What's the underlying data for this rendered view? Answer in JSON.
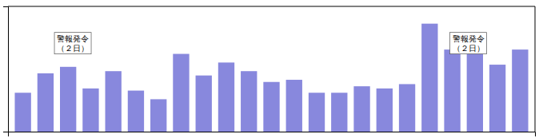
{
  "chart_data": {
    "type": "bar",
    "categories": [
      null,
      null,
      null,
      null,
      null,
      null,
      null,
      null,
      null,
      null,
      null,
      null,
      null,
      null,
      null,
      null,
      null,
      null,
      null,
      null,
      null,
      null,
      null
    ],
    "values": [
      18,
      27,
      30,
      20,
      28,
      19,
      15,
      36,
      26,
      32,
      28,
      23,
      24,
      18,
      18,
      21,
      20,
      22,
      50,
      38,
      38,
      31,
      38
    ],
    "color": "#8888dd",
    "ylim": [
      0,
      58
    ],
    "yticks": [],
    "tick_labels": false,
    "grid": false,
    "annotations": [
      {
        "text": "警報発令\n（２日）",
        "index": 0
      },
      {
        "text": "警報発令\n（２日）",
        "index": 18
      }
    ]
  }
}
